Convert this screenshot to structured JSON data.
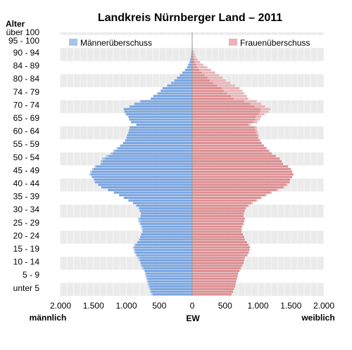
{
  "chart_data": {
    "type": "bar",
    "title": "Landkreis Nürnberger Land – 2011",
    "y_axis_title": "Alter",
    "x_axis": {
      "left_label": "männlich",
      "center_label": "EW",
      "right_label": "weiblich",
      "ticks": [
        -2000,
        -1500,
        -1000,
        -500,
        0,
        500,
        1000,
        1500,
        2000
      ],
      "tick_labels": [
        "2.000",
        "1.500",
        "1.000",
        "500",
        "0",
        "500",
        "1.000",
        "1.500",
        "2.000"
      ],
      "range": [
        -2000,
        2000
      ]
    },
    "age_group_labels": [
      "über 100",
      "95 - 100",
      "90 - 94",
      "84 - 89",
      "80 - 84",
      "74 - 79",
      "70 - 74",
      "65 - 69",
      "60 - 64",
      "55 - 59",
      "50 - 54",
      "45 - 49",
      "40 - 44",
      "35 - 39",
      "30 - 34",
      "25 - 29",
      "20 - 24",
      "15 - 19",
      "10 - 14",
      "5 - 9",
      "unter 5"
    ],
    "legend": [
      {
        "name": "Männerüberschuss",
        "color": "#a7c4e9",
        "position": "top-left"
      },
      {
        "name": "Frauenüberschuss",
        "color": "#e9b4b8",
        "position": "top-right"
      }
    ],
    "colors": {
      "male": "#7aa5e0",
      "female": "#dc8f92",
      "male_surplus": "#a7c4e9",
      "female_surplus": "#e9b4b8",
      "band": "#ebebeb"
    },
    "ages": [
      0,
      1,
      2,
      3,
      4,
      5,
      6,
      7,
      8,
      9,
      10,
      11,
      12,
      13,
      14,
      15,
      16,
      17,
      18,
      19,
      20,
      21,
      22,
      23,
      24,
      25,
      26,
      27,
      28,
      29,
      30,
      31,
      32,
      33,
      34,
      35,
      36,
      37,
      38,
      39,
      40,
      41,
      42,
      43,
      44,
      45,
      46,
      47,
      48,
      49,
      50,
      51,
      52,
      53,
      54,
      55,
      56,
      57,
      58,
      59,
      60,
      61,
      62,
      63,
      64,
      65,
      66,
      67,
      68,
      69,
      70,
      71,
      72,
      73,
      74,
      75,
      76,
      77,
      78,
      79,
      80,
      81,
      82,
      83,
      84,
      85,
      86,
      87,
      88,
      89,
      90,
      91,
      92,
      93,
      94,
      95,
      96,
      97,
      98,
      99,
      100
    ],
    "male": [
      620,
      640,
      650,
      660,
      680,
      690,
      700,
      710,
      720,
      730,
      760,
      780,
      790,
      810,
      830,
      860,
      880,
      890,
      900,
      880,
      840,
      810,
      790,
      780,
      760,
      770,
      780,
      800,
      820,
      820,
      790,
      780,
      800,
      810,
      850,
      900,
      970,
      1040,
      1110,
      1190,
      1280,
      1380,
      1430,
      1480,
      1500,
      1530,
      1560,
      1550,
      1520,
      1480,
      1400,
      1390,
      1370,
      1310,
      1240,
      1200,
      1150,
      1100,
      1050,
      1020,
      1000,
      990,
      970,
      960,
      950,
      850,
      930,
      960,
      970,
      1010,
      1030,
      1040,
      950,
      880,
      790,
      630,
      590,
      530,
      480,
      450,
      380,
      320,
      270,
      230,
      190,
      150,
      110,
      80,
      60,
      40,
      30,
      20,
      14,
      10,
      7,
      5,
      3,
      2,
      1,
      1,
      1
    ],
    "female": [
      600,
      620,
      630,
      650,
      660,
      670,
      680,
      690,
      700,
      720,
      740,
      760,
      780,
      790,
      800,
      840,
      860,
      870,
      880,
      860,
      830,
      800,
      790,
      770,
      750,
      750,
      760,
      780,
      790,
      800,
      780,
      790,
      800,
      820,
      860,
      920,
      990,
      1060,
      1130,
      1210,
      1310,
      1400,
      1450,
      1480,
      1490,
      1520,
      1540,
      1520,
      1500,
      1460,
      1380,
      1360,
      1330,
      1270,
      1210,
      1170,
      1130,
      1090,
      1060,
      1040,
      1010,
      1010,
      1000,
      990,
      980,
      890,
      990,
      1030,
      1050,
      1100,
      1160,
      1190,
      1110,
      1050,
      980,
      850,
      830,
      790,
      760,
      720,
      650,
      580,
      510,
      460,
      410,
      350,
      290,
      230,
      170,
      120,
      80,
      55,
      35,
      22,
      13,
      8,
      5,
      3,
      2,
      1,
      1
    ]
  }
}
